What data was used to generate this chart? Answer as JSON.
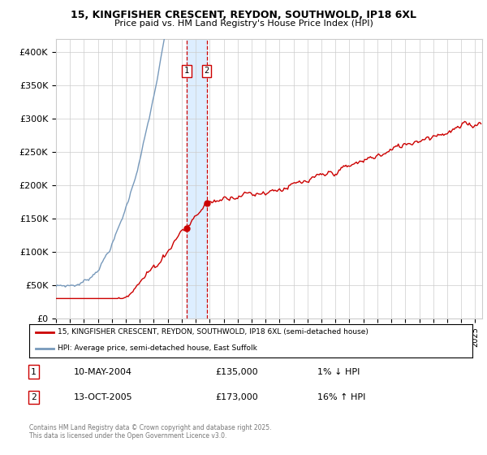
{
  "title1": "15, KINGFISHER CRESCENT, REYDON, SOUTHWOLD, IP18 6XL",
  "title2": "Price paid vs. HM Land Registry's House Price Index (HPI)",
  "ylabel_ticks": [
    "£0",
    "£50K",
    "£100K",
    "£150K",
    "£200K",
    "£250K",
    "£300K",
    "£350K",
    "£400K"
  ],
  "ytick_values": [
    0,
    50000,
    100000,
    150000,
    200000,
    250000,
    300000,
    350000,
    400000
  ],
  "ylim": [
    0,
    420000
  ],
  "xlim_start": 1995.0,
  "xlim_end": 2025.5,
  "sale1_date": 2004.36,
  "sale1_price": 135000,
  "sale2_date": 2005.79,
  "sale2_price": 173000,
  "red_line_color": "#cc0000",
  "blue_line_color": "#7799bb",
  "shade_color": "#ddeeff",
  "dashed_color": "#cc0000",
  "background_color": "#ffffff",
  "grid_color": "#cccccc",
  "legend_label1": "15, KINGFISHER CRESCENT, REYDON, SOUTHWOLD, IP18 6XL (semi-detached house)",
  "legend_label2": "HPI: Average price, semi-detached house, East Suffolk",
  "table_row1": [
    "1",
    "10-MAY-2004",
    "£135,000",
    "1% ↓ HPI"
  ],
  "table_row2": [
    "2",
    "13-OCT-2005",
    "£173,000",
    "16% ↑ HPI"
  ],
  "footnote": "Contains HM Land Registry data © Crown copyright and database right 2025.\nThis data is licensed under the Open Government Licence v3.0."
}
